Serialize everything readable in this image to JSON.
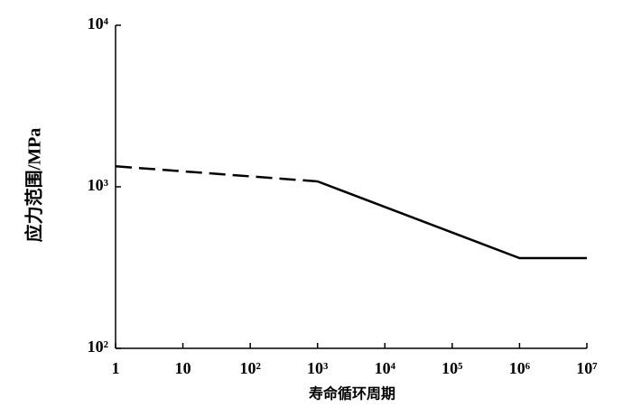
{
  "chart_data": {
    "type": "line",
    "xlabel": "寿命循环周期",
    "ylabel": "应力范围/MPa",
    "xscale": "log",
    "yscale": "log",
    "xlim": [
      1,
      10000000
    ],
    "ylim": [
      100,
      10000
    ],
    "xticks": [
      1,
      10,
      {
        "value": 100,
        "label": "10²"
      },
      {
        "value": 1000,
        "label": "10³"
      },
      {
        "value": 10000,
        "label": "10⁴"
      },
      {
        "value": 100000,
        "label": "10⁵"
      },
      {
        "value": 1000000,
        "label": "10⁶"
      },
      {
        "value": 10000000,
        "label": "10⁷"
      }
    ],
    "yticks": [
      {
        "value": 100,
        "label": "10²"
      },
      {
        "value": 1000,
        "label": "10³"
      },
      {
        "value": 10000,
        "label": "10⁴"
      }
    ],
    "series": [
      {
        "color": "#000000",
        "style": "dashed",
        "x": [
          1,
          1000
        ],
        "values": [
          1340,
          1080
        ]
      },
      {
        "color": "#000000",
        "style": "solid",
        "x": [
          1000,
          1000000,
          10000000
        ],
        "values": [
          1080,
          362,
          362
        ]
      }
    ]
  }
}
